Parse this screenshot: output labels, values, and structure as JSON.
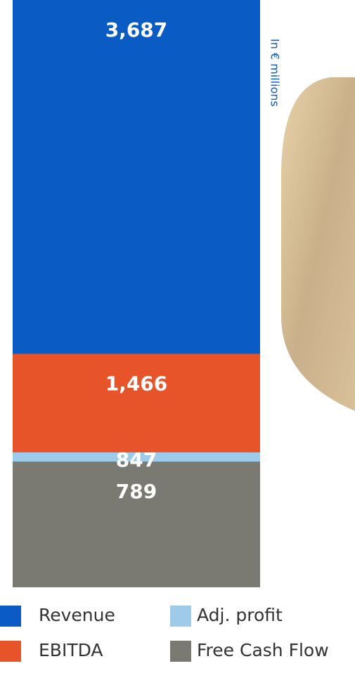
{
  "chart_data": {
    "type": "overlap-bar",
    "unit_label": "In € millions",
    "series": [
      {
        "name": "Revenue",
        "color": "#0a5bc4",
        "values": [
          3687
        ],
        "value_labels": [
          "3,687"
        ]
      },
      {
        "name": "EBITDA",
        "color": "#e8542a",
        "values": [
          1466
        ],
        "value_labels": [
          "1,466"
        ]
      },
      {
        "name": "Adj. profit",
        "color": "#9ecbe9",
        "values": [
          847
        ],
        "value_labels": [
          "847"
        ]
      },
      {
        "name": "Free Cash Flow",
        "color": "#7a7a72",
        "values": [
          789
        ],
        "value_labels": [
          "789"
        ]
      }
    ]
  }
}
